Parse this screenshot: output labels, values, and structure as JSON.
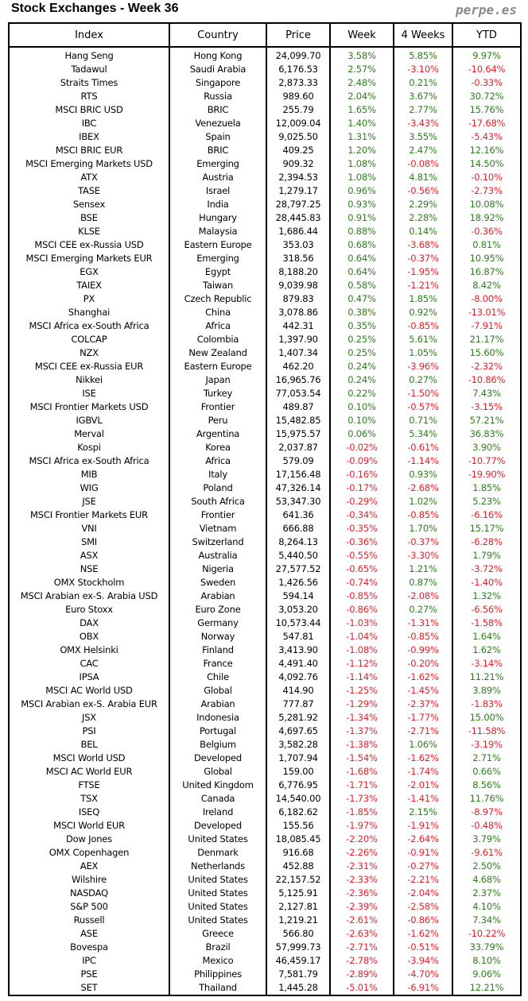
{
  "header": {
    "title": "Stock Exchanges - Week 36",
    "brand": "perpe.es"
  },
  "colors": {
    "positive": "#2e7d1e",
    "negative": "#e8202a"
  },
  "table": {
    "columns": [
      "Index",
      "Country",
      "Price",
      "Week",
      "4 Weeks",
      "YTD"
    ],
    "rows": [
      [
        "Hang Seng",
        "Hong Kong",
        "24,099.70",
        "3.58%",
        "5.85%",
        "9.97%"
      ],
      [
        "Tadawul",
        "Saudi Arabia",
        "6,176.53",
        "2.57%",
        "-3.10%",
        "-10.64%"
      ],
      [
        "Straits Times",
        "Singapore",
        "2,873.33",
        "2.48%",
        "0.21%",
        "-0.33%"
      ],
      [
        "RTS",
        "Russia",
        "989.60",
        "2.04%",
        "3.67%",
        "30.72%"
      ],
      [
        "MSCI BRIC USD",
        "BRIC",
        "255.79",
        "1.65%",
        "2.77%",
        "15.76%"
      ],
      [
        "IBC",
        "Venezuela",
        "12,009.04",
        "1.40%",
        "-3.43%",
        "-17.68%"
      ],
      [
        "IBEX",
        "Spain",
        "9,025.50",
        "1.31%",
        "3.55%",
        "-5.43%"
      ],
      [
        "MSCI BRIC EUR",
        "BRIC",
        "409.25",
        "1.20%",
        "2.47%",
        "12.16%"
      ],
      [
        "MSCI Emerging Markets USD",
        "Emerging",
        "909.32",
        "1.08%",
        "-0.08%",
        "14.50%"
      ],
      [
        "ATX",
        "Austria",
        "2,394.53",
        "1.08%",
        "4.81%",
        "-0.10%"
      ],
      [
        "TASE",
        "Israel",
        "1,279.17",
        "0.96%",
        "-0.56%",
        "-2.73%"
      ],
      [
        "Sensex",
        "India",
        "28,797.25",
        "0.93%",
        "2.29%",
        "10.08%"
      ],
      [
        "BSE",
        "Hungary",
        "28,445.83",
        "0.91%",
        "2.28%",
        "18.92%"
      ],
      [
        "KLSE",
        "Malaysia",
        "1,686.44",
        "0.88%",
        "0.14%",
        "-0.36%"
      ],
      [
        "MSCI CEE ex-Russia USD",
        "Eastern Europe",
        "353.03",
        "0.68%",
        "-3.68%",
        "0.81%"
      ],
      [
        "MSCI Emerging Markets EUR",
        "Emerging",
        "318.56",
        "0.64%",
        "-0.37%",
        "10.95%"
      ],
      [
        "EGX",
        "Egypt",
        "8,188.20",
        "0.64%",
        "-1.95%",
        "16.87%"
      ],
      [
        "TAIEX",
        "Taiwan",
        "9,039.98",
        "0.58%",
        "-1.21%",
        "8.42%"
      ],
      [
        "PX",
        "Czech Republic",
        "879.83",
        "0.47%",
        "1.85%",
        "-8.00%"
      ],
      [
        "Shanghai",
        "China",
        "3,078.86",
        "0.38%",
        "0.92%",
        "-13.01%"
      ],
      [
        "MSCI Africa ex-South Africa",
        "Africa",
        "442.31",
        "0.35%",
        "-0.85%",
        "-7.91%"
      ],
      [
        "COLCAP",
        "Colombia",
        "1,397.90",
        "0.25%",
        "5.61%",
        "21.17%"
      ],
      [
        "NZX",
        "New Zealand",
        "1,407.34",
        "0.25%",
        "1.05%",
        "15.60%"
      ],
      [
        "MSCI CEE ex-Russia EUR",
        "Eastern Europe",
        "462.20",
        "0.24%",
        "-3.96%",
        "-2.32%"
      ],
      [
        "Nikkei",
        "Japan",
        "16,965.76",
        "0.24%",
        "0.27%",
        "-10.86%"
      ],
      [
        "ISE",
        "Turkey",
        "77,053.54",
        "0.22%",
        "-1.50%",
        "7.43%"
      ],
      [
        "MSCI Frontier Markets USD",
        "Frontier",
        "489.87",
        "0.10%",
        "-0.57%",
        "-3.15%"
      ],
      [
        "IGBVL",
        "Peru",
        "15,482.85",
        "0.10%",
        "0.71%",
        "57.21%"
      ],
      [
        "Merval",
        "Argentina",
        "15,975.57",
        "0.06%",
        "5.34%",
        "36.83%"
      ],
      [
        "Kospi",
        "Korea",
        "2,037.87",
        "-0.02%",
        "-0.61%",
        "3.90%"
      ],
      [
        "MSCI Africa ex-South Africa",
        "Africa",
        "579.09",
        "-0.09%",
        "-1.14%",
        "-10.77%"
      ],
      [
        "MIB",
        "Italy",
        "17,156.48",
        "-0.16%",
        "0.93%",
        "-19.90%"
      ],
      [
        "WIG",
        "Poland",
        "47,326.14",
        "-0.17%",
        "-2.68%",
        "1.85%"
      ],
      [
        "JSE",
        "South Africa",
        "53,347.30",
        "-0.29%",
        "1.02%",
        "5.23%"
      ],
      [
        "MSCI Frontier Markets EUR",
        "Frontier",
        "641.36",
        "-0.34%",
        "-0.85%",
        "-6.16%"
      ],
      [
        "VNI",
        "Vietnam",
        "666.88",
        "-0.35%",
        "1.70%",
        "15.17%"
      ],
      [
        "SMI",
        "Switzerland",
        "8,264.13",
        "-0.36%",
        "-0.37%",
        "-6.28%"
      ],
      [
        "ASX",
        "Australia",
        "5,440.50",
        "-0.55%",
        "-3.30%",
        "1.79%"
      ],
      [
        "NSE",
        "Nigeria",
        "27,577.52",
        "-0.65%",
        "1.21%",
        "-3.72%"
      ],
      [
        "OMX Stockholm",
        "Sweden",
        "1,426.56",
        "-0.74%",
        "0.87%",
        "-1.40%"
      ],
      [
        "MSCI Arabian ex-S. Arabia USD",
        "Arabian",
        "594.14",
        "-0.85%",
        "-2.08%",
        "1.32%"
      ],
      [
        "Euro Stoxx",
        "Euro Zone",
        "3,053.20",
        "-0.86%",
        "0.27%",
        "-6.56%"
      ],
      [
        "DAX",
        "Germany",
        "10,573.44",
        "-1.03%",
        "-1.31%",
        "-1.58%"
      ],
      [
        "OBX",
        "Norway",
        "547.81",
        "-1.04%",
        "-0.85%",
        "1.64%"
      ],
      [
        "OMX Helsinki",
        "Finland",
        "3,413.90",
        "-1.08%",
        "-0.99%",
        "1.62%"
      ],
      [
        "CAC",
        "France",
        "4,491.40",
        "-1.12%",
        "-0.20%",
        "-3.14%"
      ],
      [
        "IPSA",
        "Chile",
        "4,092.76",
        "-1.14%",
        "-1.62%",
        "11.21%"
      ],
      [
        "MSCI AC World USD",
        "Global",
        "414.90",
        "-1.25%",
        "-1.45%",
        "3.89%"
      ],
      [
        "MSCI Arabian ex-S. Arabia EUR",
        "Arabian",
        "777.87",
        "-1.29%",
        "-2.37%",
        "-1.83%"
      ],
      [
        "JSX",
        "Indonesia",
        "5,281.92",
        "-1.34%",
        "-1.77%",
        "15.00%"
      ],
      [
        "PSI",
        "Portugal",
        "4,697.65",
        "-1.37%",
        "-2.71%",
        "-11.58%"
      ],
      [
        "BEL",
        "Belgium",
        "3,582.28",
        "-1.38%",
        "1.06%",
        "-3.19%"
      ],
      [
        "MSCI World USD",
        "Developed",
        "1,707.94",
        "-1.54%",
        "-1.62%",
        "2.71%"
      ],
      [
        "MSCI AC World EUR",
        "Global",
        "159.00",
        "-1.68%",
        "-1.74%",
        "0.66%"
      ],
      [
        "FTSE",
        "United Kingdom",
        "6,776.95",
        "-1.71%",
        "-2.01%",
        "8.56%"
      ],
      [
        "TSX",
        "Canada",
        "14,540.00",
        "-1.73%",
        "-1.41%",
        "11.76%"
      ],
      [
        "ISEQ",
        "Ireland",
        "6,182.62",
        "-1.85%",
        "2.15%",
        "-8.97%"
      ],
      [
        "MSCI World EUR",
        "Developed",
        "155.56",
        "-1.97%",
        "-1.91%",
        "-0.48%"
      ],
      [
        "Dow Jones",
        "United States",
        "18,085.45",
        "-2.20%",
        "-2.64%",
        "3.79%"
      ],
      [
        "OMX Copenhagen",
        "Denmark",
        "916.68",
        "-2.26%",
        "-0.91%",
        "-9.61%"
      ],
      [
        "AEX",
        "Netherlands",
        "452.88",
        "-2.31%",
        "-0.27%",
        "2.50%"
      ],
      [
        "Wilshire",
        "United States",
        "22,157.52",
        "-2.33%",
        "-2.21%",
        "4.68%"
      ],
      [
        "NASDAQ",
        "United States",
        "5,125.91",
        "-2.36%",
        "-2.04%",
        "2.37%"
      ],
      [
        "S&P 500",
        "United States",
        "2,127.81",
        "-2.39%",
        "-2.58%",
        "4.10%"
      ],
      [
        "Russell",
        "United States",
        "1,219.21",
        "-2.61%",
        "-0.86%",
        "7.34%"
      ],
      [
        "ASE",
        "Greece",
        "566.80",
        "-2.63%",
        "-1.62%",
        "-10.22%"
      ],
      [
        "Bovespa",
        "Brazil",
        "57,999.73",
        "-2.71%",
        "-0.51%",
        "33.79%"
      ],
      [
        "IPC",
        "Mexico",
        "46,459.17",
        "-2.78%",
        "-3.94%",
        "8.10%"
      ],
      [
        "PSE",
        "Philippines",
        "7,581.79",
        "-2.89%",
        "-4.70%",
        "9.06%"
      ],
      [
        "SET",
        "Thailand",
        "1,445.28",
        "-5.01%",
        "-6.91%",
        "12.21%"
      ]
    ]
  }
}
